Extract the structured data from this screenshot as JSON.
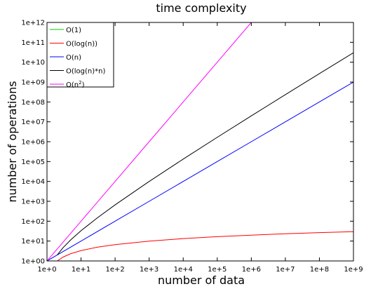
{
  "chart_data": {
    "type": "line",
    "title": "time complexity",
    "xlabel": "number of data",
    "ylabel": "number of operations",
    "x_scale": "log",
    "y_scale": "log",
    "xlim": [
      1,
      1000000000
    ],
    "ylim": [
      1,
      1000000000000
    ],
    "grid": false,
    "legend_position": "top-left",
    "x_ticks": [
      {
        "value": 1,
        "label": "1e+0"
      },
      {
        "value": 10,
        "label": "1e+1"
      },
      {
        "value": 100,
        "label": "1e+2"
      },
      {
        "value": 1000,
        "label": "1e+3"
      },
      {
        "value": 10000,
        "label": "1e+4"
      },
      {
        "value": 100000,
        "label": "1e+5"
      },
      {
        "value": 1000000,
        "label": "1e+6"
      },
      {
        "value": 10000000,
        "label": "1e+7"
      },
      {
        "value": 100000000,
        "label": "1e+8"
      },
      {
        "value": 1000000000,
        "label": "1e+9"
      }
    ],
    "y_ticks": [
      {
        "value": 1,
        "label": "1e+00"
      },
      {
        "value": 10,
        "label": "1e+01"
      },
      {
        "value": 100,
        "label": "1e+02"
      },
      {
        "value": 1000,
        "label": "1e+03"
      },
      {
        "value": 10000,
        "label": "1e+04"
      },
      {
        "value": 100000,
        "label": "1e+05"
      },
      {
        "value": 1000000,
        "label": "1e+06"
      },
      {
        "value": 10000000,
        "label": "1e+07"
      },
      {
        "value": 100000000,
        "label": "1e+08"
      },
      {
        "value": 1000000000,
        "label": "1e+09"
      },
      {
        "value": 10000000000,
        "label": "1e+10"
      },
      {
        "value": 100000000000,
        "label": "1e+11"
      },
      {
        "value": 1000000000000,
        "label": "1e+12"
      }
    ],
    "series": [
      {
        "name": "O(1)",
        "color": "#00cc00",
        "legend_base": "O(1)",
        "legend_sup": "",
        "x": [
          1,
          10,
          100,
          1000,
          10000,
          100000,
          1000000,
          10000000,
          100000000,
          1000000000
        ],
        "y": [
          1,
          1,
          1,
          1,
          1,
          1,
          1,
          1,
          1,
          1
        ]
      },
      {
        "name": "O(log(n))",
        "color": "#ff0000",
        "legend_base": "O(log(n))",
        "legend_sup": "",
        "x": [
          2,
          3,
          5,
          10,
          30,
          100,
          1000,
          10000,
          100000,
          1000000,
          10000000,
          100000000,
          1000000000
        ],
        "y": [
          1,
          1.58,
          2.32,
          3.32,
          4.91,
          6.64,
          9.97,
          13.3,
          16.6,
          19.9,
          23.3,
          26.6,
          29.9
        ]
      },
      {
        "name": "O(n)",
        "color": "#0000ff",
        "legend_base": "O(n)",
        "legend_sup": "",
        "x": [
          1,
          10,
          100,
          1000,
          10000,
          100000,
          1000000,
          10000000,
          100000000,
          1000000000
        ],
        "y": [
          1,
          10,
          100,
          1000,
          10000,
          100000,
          1000000,
          10000000,
          100000000,
          1000000000
        ]
      },
      {
        "name": "O(log(n)*n)",
        "color": "#000000",
        "legend_base": "O(log(n)*n)",
        "legend_sup": "",
        "x": [
          2,
          3,
          5,
          10,
          30,
          100,
          1000,
          10000,
          100000,
          1000000,
          10000000,
          100000000,
          1000000000
        ],
        "y": [
          2,
          4.75,
          11.6,
          33.2,
          147,
          664,
          9970,
          133000,
          1660000,
          19900000,
          233000000,
          2660000000,
          29900000000
        ]
      },
      {
        "name": "O(n²)",
        "color": "#ff00ff",
        "legend_base": "O(n",
        "legend_sup": "2",
        "x": [
          1,
          10,
          100,
          1000,
          10000,
          100000,
          1000000
        ],
        "y": [
          1,
          100,
          10000,
          1000000,
          100000000,
          10000000000,
          1000000000000
        ]
      }
    ]
  }
}
